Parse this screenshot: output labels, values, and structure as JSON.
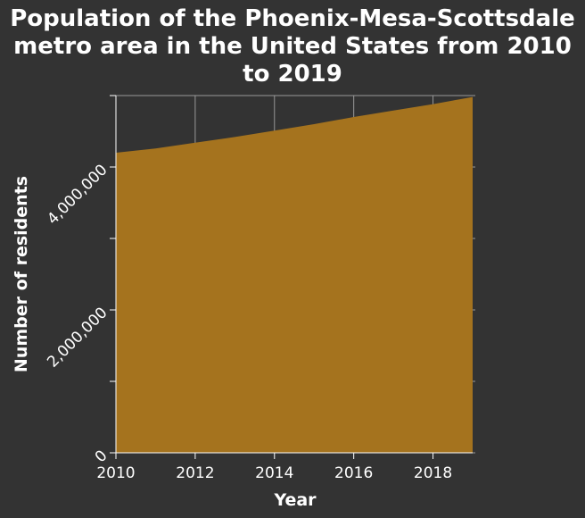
{
  "chart_data": {
    "type": "area",
    "title_lines": [
      "Population of the Phoenix-Mesa-Scottsdale",
      "metro area in the United States from 2010",
      "to 2019"
    ],
    "xlabel": "Year",
    "ylabel": "Number of residents",
    "x": [
      2010,
      2011,
      2012,
      2013,
      2014,
      2015,
      2016,
      2017,
      2018,
      2019
    ],
    "series": [
      {
        "values": [
          4200000,
          4260000,
          4340000,
          4420000,
          4510000,
          4600000,
          4700000,
          4790000,
          4880000,
          4980000
        ]
      }
    ],
    "xlim": [
      2010,
      2019
    ],
    "ylim": [
      0,
      5000000
    ],
    "x_ticks": [
      2010,
      2012,
      2014,
      2016,
      2018
    ],
    "x_tick_labels": [
      "2010",
      "2012",
      "2014",
      "2016",
      "2018"
    ],
    "y_ticks": [
      0,
      2000000,
      4000000
    ],
    "y_tick_labels": [
      "0",
      "2,000,000",
      "4,000,000"
    ],
    "y_minor_ticks": [
      1000000,
      3000000,
      5000000
    ],
    "grid": true,
    "legend": "none",
    "colors": {
      "background": "#333333",
      "fill": "#a5731e",
      "grid": "#999999",
      "text": "#ffffff"
    }
  }
}
